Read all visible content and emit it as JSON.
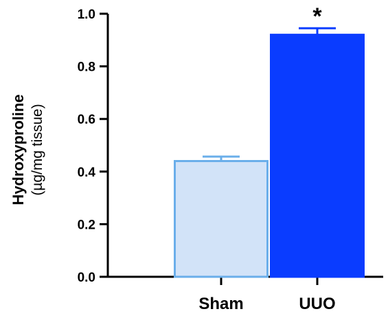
{
  "chart_data": {
    "type": "bar",
    "categories": [
      "Sham",
      "UUO"
    ],
    "values": [
      0.44,
      0.92
    ],
    "errors": [
      0.017,
      0.025
    ],
    "significance": [
      "",
      "*"
    ],
    "ylabel": "Hydroxyproline",
    "ylabel_unit": "(µg/mg tissue)",
    "ylim": [
      0.0,
      1.0
    ],
    "yticks": [
      "0.0",
      "0.2",
      "0.4",
      "0.6",
      "0.8",
      "1.0"
    ],
    "grid": false,
    "colors": {
      "sham_fill": "#d2e3f8",
      "sham_stroke": "#6aaeea",
      "uuo_fill": "#0a3cff",
      "uuo_stroke": "#0a3cff",
      "axis": "#000000"
    }
  }
}
